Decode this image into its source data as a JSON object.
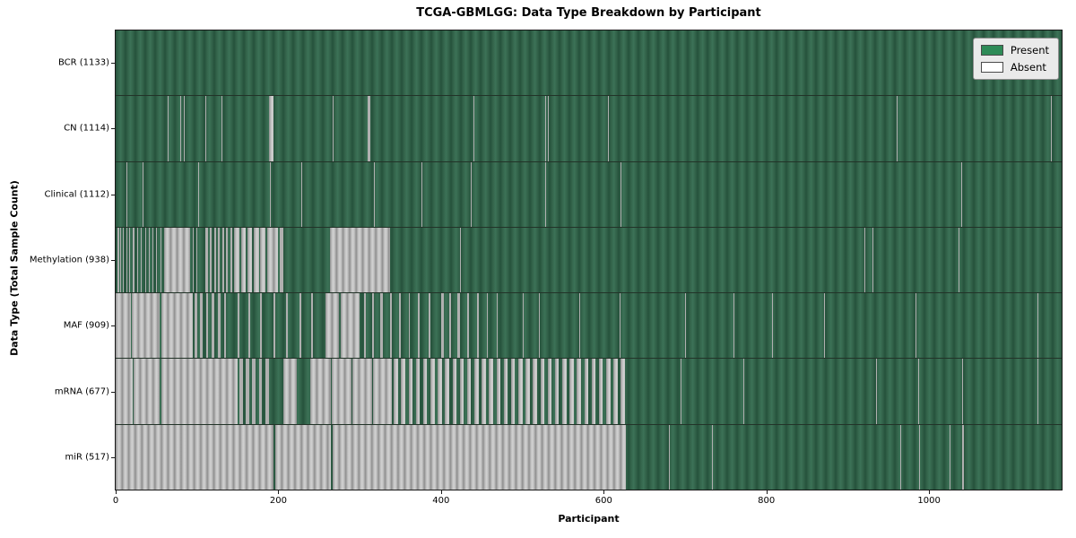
{
  "title": "TCGA-GBMLGG: Data Type Breakdown by Participant",
  "x_axis_label": "Participant",
  "y_axis_label": "Data Type (Total Sample Count)",
  "legend": {
    "entries": [
      {
        "label": "Present",
        "color": "#2e8b57"
      },
      {
        "label": "Absent",
        "color": "#ffffff"
      }
    ]
  },
  "chart_data": {
    "type": "heatmap",
    "description": "Presence/absence barcode matrix: one column per participant, one row per data type. Green = data present, white/gray = data absent.",
    "title": "TCGA-GBMLGG: Data Type Breakdown by Participant",
    "xlabel": "Participant",
    "ylabel": "Data Type (Total Sample Count)",
    "x_range": [
      0,
      1163
    ],
    "x_ticks": [
      0,
      200,
      400,
      600,
      800,
      1000
    ],
    "present_color": "#2e8b57",
    "absent_color": "#ffffff",
    "grid": false,
    "legend_position": "upper right",
    "rows": [
      {
        "label": "BCR (1133)",
        "data_type": "BCR",
        "total_sample_count": 1133,
        "absent_segments": []
      },
      {
        "label": "CN (1114)",
        "data_type": "CN",
        "total_sample_count": 1114,
        "absent_segments": [
          [
            64,
            65
          ],
          [
            79,
            80
          ],
          [
            84,
            85
          ],
          [
            110,
            111
          ],
          [
            130,
            131
          ],
          [
            189,
            194
          ],
          [
            267,
            268
          ],
          [
            310,
            313
          ],
          [
            440,
            441
          ],
          [
            528,
            529
          ],
          [
            531,
            532
          ],
          [
            605,
            606
          ],
          [
            960,
            961
          ],
          [
            1150,
            1151
          ]
        ]
      },
      {
        "label": "Clinical (1112)",
        "data_type": "Clinical",
        "total_sample_count": 1112,
        "absent_segments": [
          [
            13,
            14
          ],
          [
            33,
            34
          ],
          [
            101,
            102
          ],
          [
            190,
            191
          ],
          [
            228,
            229
          ],
          [
            318,
            319
          ],
          [
            376,
            377
          ],
          [
            437,
            438
          ],
          [
            528,
            529
          ],
          [
            621,
            622
          ],
          [
            1040,
            1041
          ]
        ]
      },
      {
        "label": "Methylation (938)",
        "data_type": "Methylation",
        "total_sample_count": 938,
        "absent_segments": [
          [
            2,
            4
          ],
          [
            6,
            7
          ],
          [
            9,
            10
          ],
          [
            13,
            14
          ],
          [
            17,
            18
          ],
          [
            21,
            23
          ],
          [
            27,
            28
          ],
          [
            31,
            32
          ],
          [
            36,
            37
          ],
          [
            41,
            42
          ],
          [
            45,
            46
          ],
          [
            50,
            51
          ],
          [
            55,
            56
          ],
          [
            60,
            91
          ],
          [
            95,
            96
          ],
          [
            99,
            100
          ],
          [
            110,
            113
          ],
          [
            116,
            118
          ],
          [
            121,
            123
          ],
          [
            126,
            128
          ],
          [
            131,
            133
          ],
          [
            136,
            138
          ],
          [
            141,
            143
          ],
          [
            145,
            152
          ],
          [
            154,
            160
          ],
          [
            162,
            168
          ],
          [
            170,
            176
          ],
          [
            178,
            184
          ],
          [
            186,
            200
          ],
          [
            202,
            206
          ],
          [
            264,
            337
          ],
          [
            423,
            424
          ],
          [
            920,
            921
          ],
          [
            930,
            931
          ],
          [
            1036,
            1037
          ]
        ]
      },
      {
        "label": "MAF (909)",
        "data_type": "MAF",
        "total_sample_count": 909,
        "absent_segments": [
          [
            0,
            19
          ],
          [
            20,
            54
          ],
          [
            56,
            95
          ],
          [
            97,
            100
          ],
          [
            104,
            107
          ],
          [
            111,
            114
          ],
          [
            118,
            121
          ],
          [
            126,
            129
          ],
          [
            133,
            136
          ],
          [
            150,
            152
          ],
          [
            163,
            165
          ],
          [
            178,
            180
          ],
          [
            194,
            196
          ],
          [
            210,
            212
          ],
          [
            226,
            228
          ],
          [
            240,
            242
          ],
          [
            258,
            275
          ],
          [
            277,
            300
          ],
          [
            305,
            308
          ],
          [
            315,
            317
          ],
          [
            325,
            328
          ],
          [
            337,
            339
          ],
          [
            348,
            351
          ],
          [
            360,
            362
          ],
          [
            372,
            374
          ],
          [
            385,
            387
          ],
          [
            400,
            403
          ],
          [
            410,
            412
          ],
          [
            420,
            423
          ],
          [
            432,
            434
          ],
          [
            444,
            446
          ],
          [
            456,
            458
          ],
          [
            468,
            470
          ],
          [
            500,
            501
          ],
          [
            520,
            521
          ],
          [
            570,
            571
          ],
          [
            620,
            621
          ],
          [
            700,
            701
          ],
          [
            760,
            761
          ],
          [
            807,
            808
          ],
          [
            871,
            872
          ],
          [
            983,
            984
          ],
          [
            1133,
            1134
          ]
        ]
      },
      {
        "label": "mRNA (677)",
        "data_type": "mRNA",
        "total_sample_count": 677,
        "absent_segments": [
          [
            0,
            21
          ],
          [
            22,
            54
          ],
          [
            56,
            150
          ],
          [
            152,
            156
          ],
          [
            160,
            164
          ],
          [
            168,
            172
          ],
          [
            176,
            180
          ],
          [
            184,
            188
          ],
          [
            206,
            223
          ],
          [
            239,
            265
          ],
          [
            266,
            290
          ],
          [
            291,
            315
          ],
          [
            316,
            340
          ],
          [
            342,
            347
          ],
          [
            351,
            356
          ],
          [
            360,
            365
          ],
          [
            369,
            374
          ],
          [
            378,
            383
          ],
          [
            387,
            392
          ],
          [
            396,
            401
          ],
          [
            405,
            410
          ],
          [
            414,
            419
          ],
          [
            423,
            428
          ],
          [
            432,
            437
          ],
          [
            441,
            446
          ],
          [
            450,
            455
          ],
          [
            459,
            464
          ],
          [
            468,
            473
          ],
          [
            477,
            482
          ],
          [
            486,
            491
          ],
          [
            495,
            500
          ],
          [
            504,
            509
          ],
          [
            513,
            518
          ],
          [
            522,
            527
          ],
          [
            531,
            536
          ],
          [
            540,
            545
          ],
          [
            549,
            554
          ],
          [
            558,
            563
          ],
          [
            567,
            572
          ],
          [
            576,
            581
          ],
          [
            585,
            590
          ],
          [
            594,
            599
          ],
          [
            603,
            608
          ],
          [
            612,
            617
          ],
          [
            621,
            626
          ],
          [
            695,
            696
          ],
          [
            772,
            773
          ],
          [
            935,
            936
          ],
          [
            987,
            988
          ],
          [
            1041,
            1042
          ],
          [
            1133,
            1134
          ]
        ]
      },
      {
        "label": "miR (517)",
        "data_type": "miR",
        "total_sample_count": 517,
        "absent_segments": [
          [
            0,
            194
          ],
          [
            196,
            265
          ],
          [
            267,
            627
          ],
          [
            680,
            681
          ],
          [
            733,
            734
          ],
          [
            965,
            966
          ],
          [
            988,
            989
          ],
          [
            1025,
            1026
          ],
          [
            1041,
            1043
          ]
        ]
      }
    ]
  }
}
